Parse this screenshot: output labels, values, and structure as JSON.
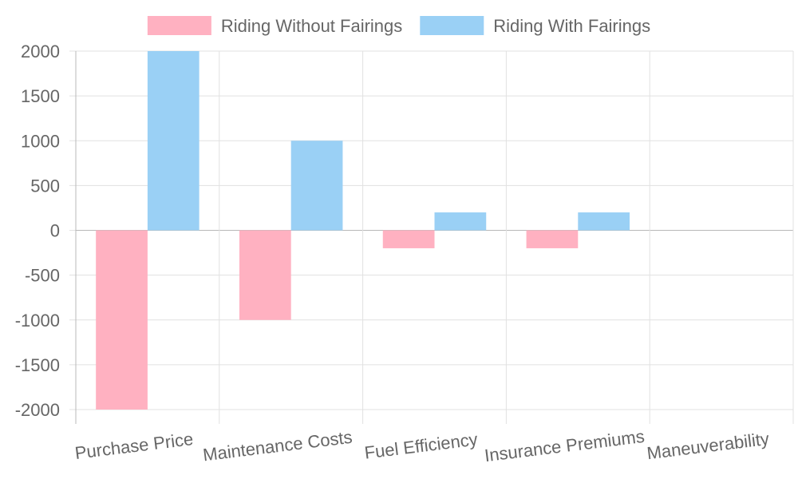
{
  "chart_data": {
    "type": "bar",
    "categories": [
      "Purchase Price",
      "Maintenance Costs",
      "Fuel Efficiency",
      "Insurance Premiums",
      "Maneuverability"
    ],
    "series": [
      {
        "name": "Riding Without Fairings",
        "values": [
          -2000,
          -1000,
          -200,
          -200,
          0
        ],
        "color": "#ffb1c1"
      },
      {
        "name": "Riding With Fairings",
        "values": [
          2000,
          1000,
          200,
          200,
          0
        ],
        "color": "#9ad0f5"
      }
    ],
    "ylim": [
      -2000,
      2000
    ],
    "yticks": [
      2000,
      1500,
      1000,
      500,
      0,
      -500,
      -1000,
      -1500,
      -2000
    ],
    "grid": true,
    "legend_position": "top",
    "colors": {
      "grid": "#e1e1e1",
      "zero_line": "#b8b8b8",
      "text": "#666666"
    }
  }
}
